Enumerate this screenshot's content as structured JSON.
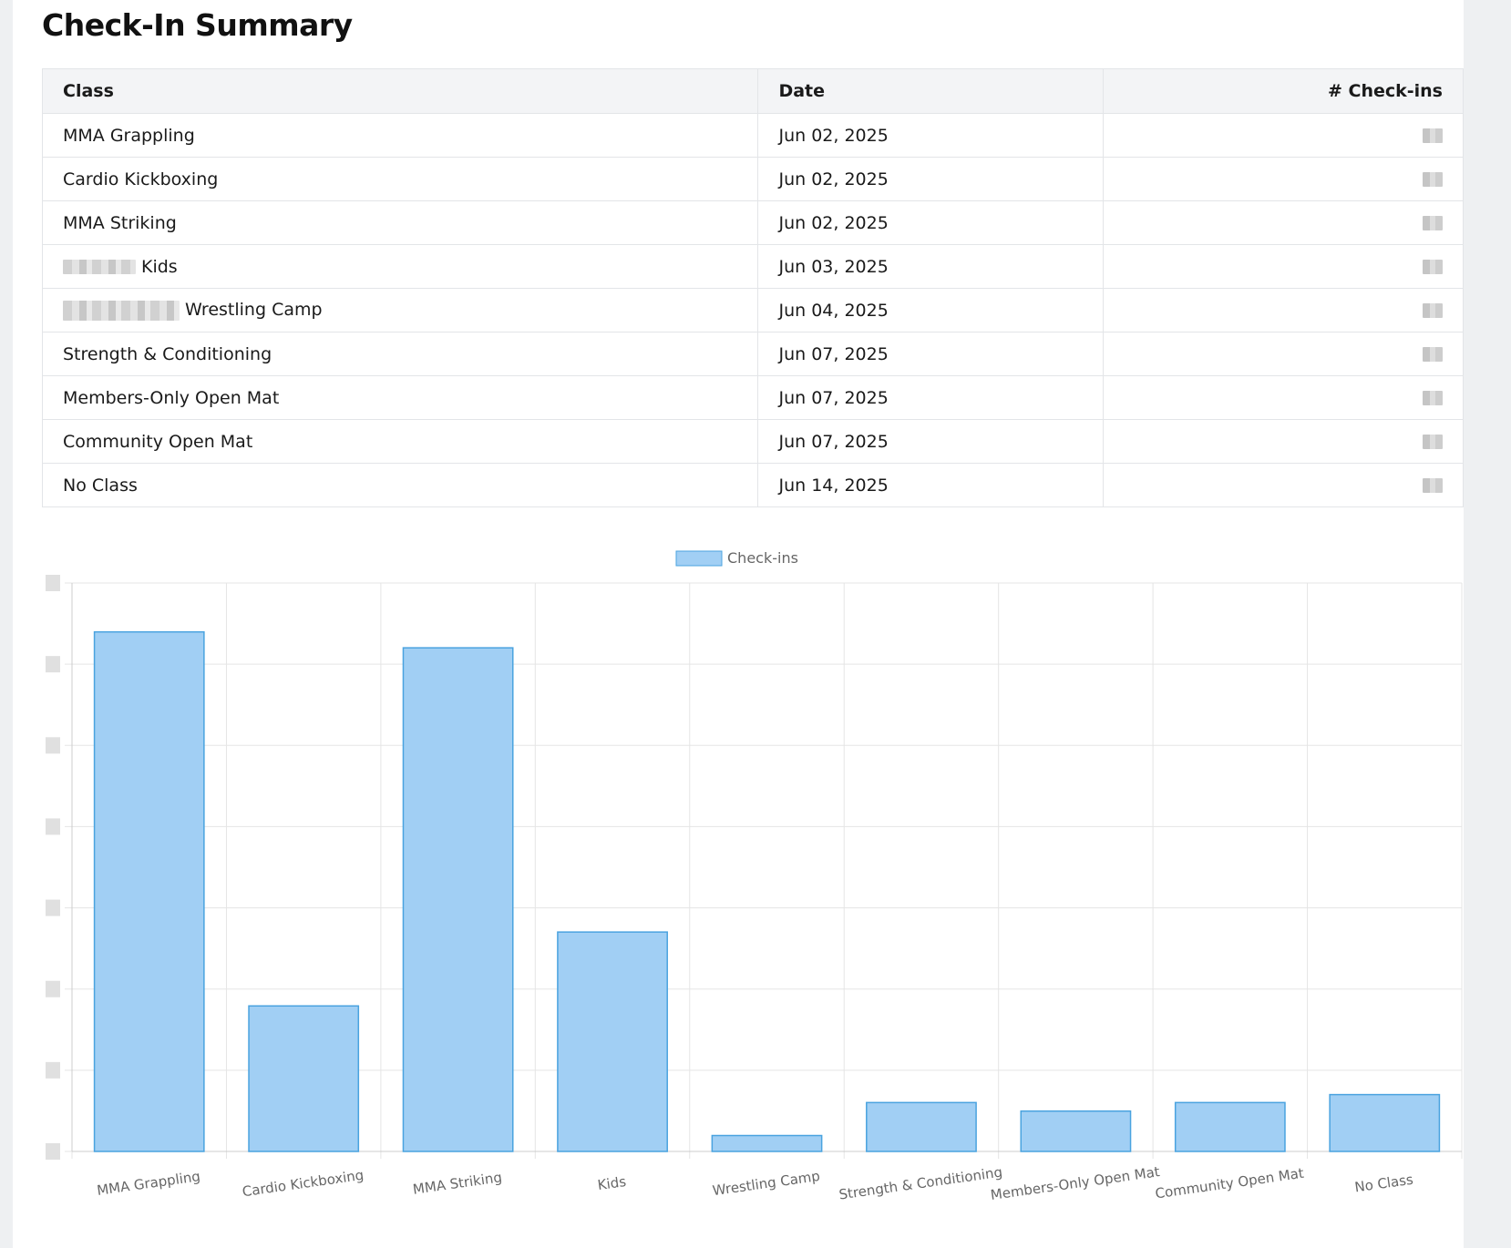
{
  "page": {
    "title": "Check-In Summary"
  },
  "table": {
    "headers": {
      "class": "Class",
      "date": "Date",
      "checkins": "# Check-ins"
    },
    "rows": [
      {
        "class": "MMA Grappling",
        "date": "Jun 02, 2025",
        "redacted_prefix": false
      },
      {
        "class": "Cardio Kickboxing",
        "date": "Jun 02, 2025",
        "redacted_prefix": false
      },
      {
        "class": "MMA Striking",
        "date": "Jun 02, 2025",
        "redacted_prefix": false
      },
      {
        "class": "Kids",
        "date": "Jun 03, 2025",
        "redacted_prefix": true
      },
      {
        "class": "Wrestling Camp",
        "date": "Jun 04, 2025",
        "redacted_prefix": true
      },
      {
        "class": "Strength & Conditioning",
        "date": "Jun 07, 2025",
        "redacted_prefix": false
      },
      {
        "class": "Members-Only Open Mat",
        "date": "Jun 07, 2025",
        "redacted_prefix": false
      },
      {
        "class": "Community Open Mat",
        "date": "Jun 07, 2025",
        "redacted_prefix": false
      },
      {
        "class": "No Class",
        "date": "Jun 14, 2025",
        "redacted_prefix": false
      }
    ]
  },
  "chart_data": {
    "type": "bar",
    "title": "",
    "xlabel": "",
    "ylabel": "",
    "categories": [
      "MMA Grappling",
      "Cardio Kickboxing",
      "MMA Striking",
      "Kids",
      "Wrestling Camp",
      "Strength & Conditioning",
      "Members-Only Open Mat",
      "Community Open Mat",
      "No Class"
    ],
    "series": [
      {
        "name": "Check-ins",
        "values": [
          0.914,
          0.256,
          0.886,
          0.386,
          0.028,
          0.086,
          0.071,
          0.086,
          0.1
        ],
        "fill": "#a1cff4",
        "stroke": "#4aa3df"
      }
    ],
    "ylim": [
      0,
      1
    ],
    "y_tick_count": 7,
    "y_tick_labels_redacted": true,
    "grid": true,
    "legend": "top-center"
  },
  "colors": {
    "bar_fill": "#a1cff4",
    "bar_stroke": "#4aa3df",
    "grid": "#e5e5e5",
    "header_bg": "#f3f4f6"
  }
}
